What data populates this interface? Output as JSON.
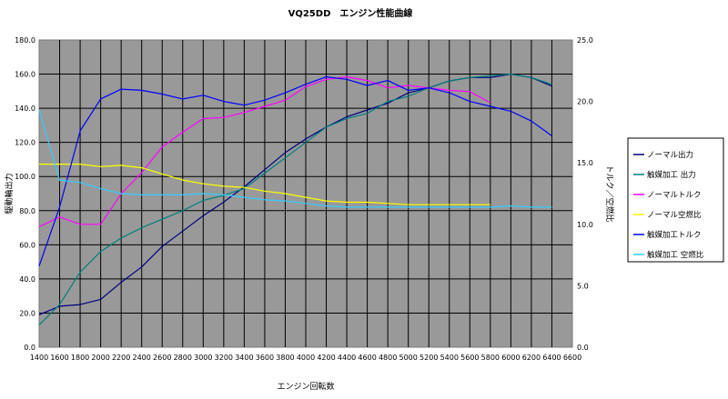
{
  "chart_data": {
    "type": "line",
    "title": "VQ25DD　エンジン性能曲線",
    "xlabel": "エンジン回転数",
    "ylabel_left": "駆動輪出力",
    "ylabel_right": "トルク／空燃比",
    "xlim": [
      1400,
      6600
    ],
    "x_ticks": [
      "1400",
      "1600",
      "1800",
      "2000",
      "2200",
      "2400",
      "2600",
      "2800",
      "3000",
      "3200",
      "3400",
      "3600",
      "3800",
      "4000",
      "4200",
      "4400",
      "4600",
      "4800",
      "5000",
      "5200",
      "5400",
      "5600",
      "5800",
      "6000",
      "6200",
      "6400",
      "6600"
    ],
    "ylim_left": [
      0,
      180
    ],
    "y_ticks_left": [
      "0.0",
      "20.0",
      "40.0",
      "60.0",
      "80.0",
      "100.0",
      "120.0",
      "140.0",
      "160.0",
      "180.0"
    ],
    "ylim_right": [
      0,
      25
    ],
    "y_ticks_right": [
      "0.0",
      "5.0",
      "10.0",
      "15.0",
      "20.0",
      "25.0"
    ],
    "plot_background": "#999999",
    "grid": true,
    "legend_position": "right",
    "series": [
      {
        "name": "ノーマル出力",
        "axis": "left",
        "color": "#00007f",
        "x": [
          1400,
          1600,
          1800,
          2000,
          2200,
          2400,
          2600,
          2800,
          3000,
          3200,
          3400,
          3600,
          3800,
          4000,
          4200,
          4400,
          4600,
          4800,
          5000,
          5200,
          5400,
          5600,
          5800,
          6000,
          6200,
          6400
        ],
        "values": [
          19,
          24,
          25,
          28,
          38,
          47,
          59,
          68,
          77,
          85,
          94,
          104,
          114,
          122,
          129,
          135,
          139,
          143,
          149,
          152,
          156,
          158,
          158,
          160,
          158,
          153
        ]
      },
      {
        "name": "触媒加工 出力",
        "axis": "left",
        "color": "#007f7f",
        "x": [
          1400,
          1600,
          1800,
          2000,
          2200,
          2400,
          2600,
          2800,
          3000,
          3200,
          3400,
          3600,
          3800,
          4000,
          4200,
          4400,
          4600,
          4800,
          5000,
          5200,
          5400,
          5600,
          5800,
          6000,
          6200,
          6400
        ],
        "values": [
          13,
          25,
          44,
          56,
          64,
          70,
          75,
          80,
          86,
          89,
          93,
          102,
          111,
          120,
          129,
          134,
          137,
          144,
          147,
          152,
          156,
          158,
          159,
          160,
          158,
          154
        ]
      },
      {
        "name": "ノーマルトルク",
        "axis": "right",
        "color": "#ff00ff",
        "x": [
          1400,
          1600,
          1800,
          2000,
          2200,
          2400,
          2600,
          2800,
          3000,
          3200,
          3400,
          3600,
          3800,
          4000,
          4200,
          4400,
          4600,
          4800,
          5000,
          5200,
          5400,
          5600,
          5800
        ],
        "values": [
          9.8,
          10.6,
          10.0,
          10.0,
          12.5,
          14.2,
          16.3,
          17.5,
          18.6,
          18.7,
          19.1,
          19.6,
          20.1,
          21.2,
          21.8,
          22.0,
          21.7,
          21.1,
          21.3,
          21.1,
          20.9,
          20.8,
          19.9
        ]
      },
      {
        "name": "ノーマル空燃比",
        "axis": "right",
        "color": "#ffff00",
        "x": [
          1400,
          1600,
          1800,
          2000,
          2200,
          2400,
          2600,
          2800,
          3000,
          3200,
          3400,
          3600,
          3800,
          4000,
          4200,
          4400,
          4600,
          4800,
          5000,
          5200,
          5400,
          5600,
          5800
        ],
        "values": [
          14.9,
          14.9,
          14.9,
          14.7,
          14.8,
          14.6,
          14.1,
          13.6,
          13.3,
          13.1,
          13.0,
          12.7,
          12.5,
          12.2,
          11.9,
          11.8,
          11.8,
          11.7,
          11.6,
          11.6,
          11.6,
          11.6,
          11.6
        ]
      },
      {
        "name": "触媒加工トルク",
        "axis": "right",
        "color": "#0000ff",
        "x": [
          1400,
          1600,
          1800,
          2000,
          2200,
          2400,
          2600,
          2800,
          3000,
          3200,
          3400,
          3600,
          3800,
          4000,
          4200,
          4400,
          4600,
          4800,
          5000,
          5200,
          5400,
          5600,
          5800,
          6000,
          6200,
          6400
        ],
        "values": [
          6.6,
          11.4,
          17.6,
          20.2,
          21.0,
          20.9,
          20.6,
          20.2,
          20.5,
          20.0,
          19.7,
          20.1,
          20.7,
          21.4,
          22.0,
          21.8,
          21.3,
          21.7,
          20.9,
          21.1,
          20.7,
          20.0,
          19.6,
          19.2,
          18.4,
          17.2
        ]
      },
      {
        "name": "触媒加工 空燃比",
        "axis": "right",
        "color": "#33ccff",
        "x": [
          1400,
          1600,
          1800,
          2000,
          2200,
          2400,
          2600,
          2800,
          3000,
          3200,
          3400,
          3600,
          3800,
          4000,
          4200,
          4400,
          4600,
          4800,
          5000,
          5200,
          5400,
          5600,
          5800,
          6000,
          6200,
          6400
        ],
        "values": [
          19.3,
          13.6,
          13.4,
          12.9,
          12.5,
          12.4,
          12.4,
          12.4,
          12.5,
          12.4,
          12.2,
          12.0,
          11.9,
          11.7,
          11.5,
          11.4,
          11.4,
          11.4,
          11.4,
          11.4,
          11.4,
          11.4,
          11.4,
          11.5,
          11.4,
          11.4
        ]
      }
    ]
  }
}
